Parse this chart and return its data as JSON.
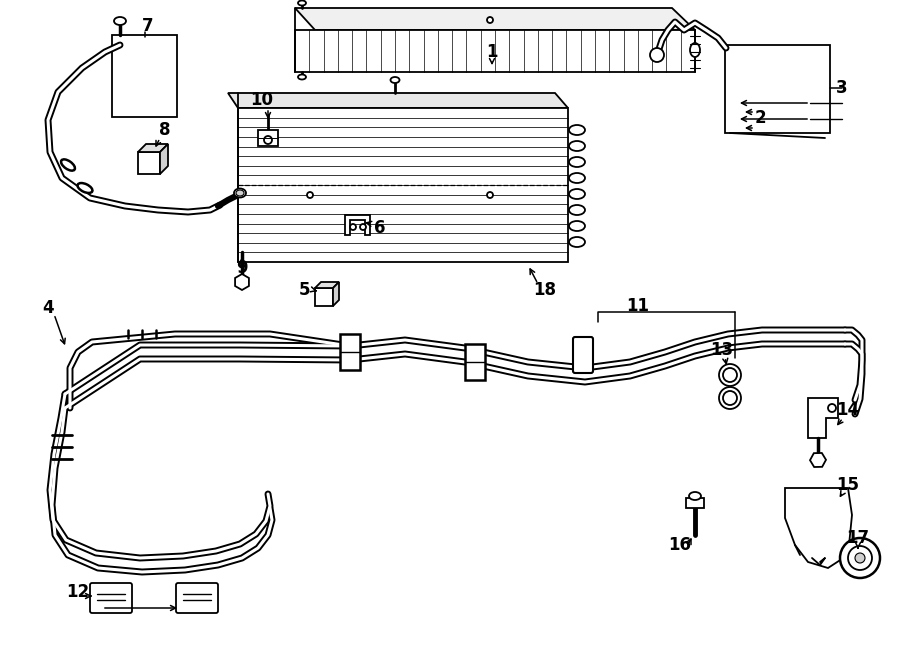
{
  "bg": "#ffffff",
  "lc": "#000000",
  "figsize": [
    9.0,
    6.61
  ],
  "dpi": 100,
  "title_fs": 13,
  "lw": 1.3
}
